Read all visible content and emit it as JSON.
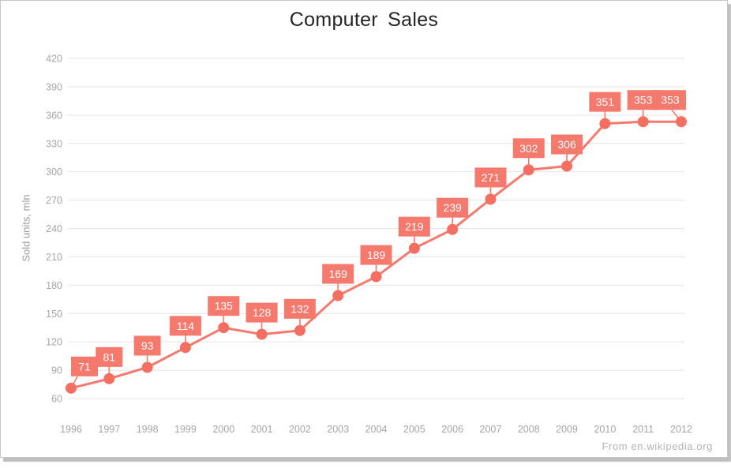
{
  "window": {
    "attribution": "From en.wikipedia.org"
  },
  "chart_data": {
    "type": "line",
    "title": "Computer Sales",
    "xlabel": "",
    "ylabel": "Sold units, mln",
    "categories": [
      "1996",
      "1997",
      "1998",
      "1999",
      "2000",
      "2001",
      "2002",
      "2003",
      "2004",
      "2005",
      "2006",
      "2007",
      "2008",
      "2009",
      "2010",
      "2011",
      "2012"
    ],
    "values": [
      71,
      81,
      93,
      114,
      135,
      128,
      132,
      169,
      189,
      219,
      239,
      271,
      302,
      306,
      351,
      353,
      353
    ],
    "ylim": [
      60,
      420
    ],
    "ytick_step": 30,
    "grid": "horizontal",
    "legend": "none",
    "series_name": "Sold units",
    "colors": {
      "series": "#f5796d",
      "point": "#f46f62",
      "label_bg": "#f5796d",
      "label_text": "#ffffff",
      "gridline": "#e4e4e4",
      "axis_text": "#a6a6a6",
      "title_text": "#242424"
    }
  }
}
